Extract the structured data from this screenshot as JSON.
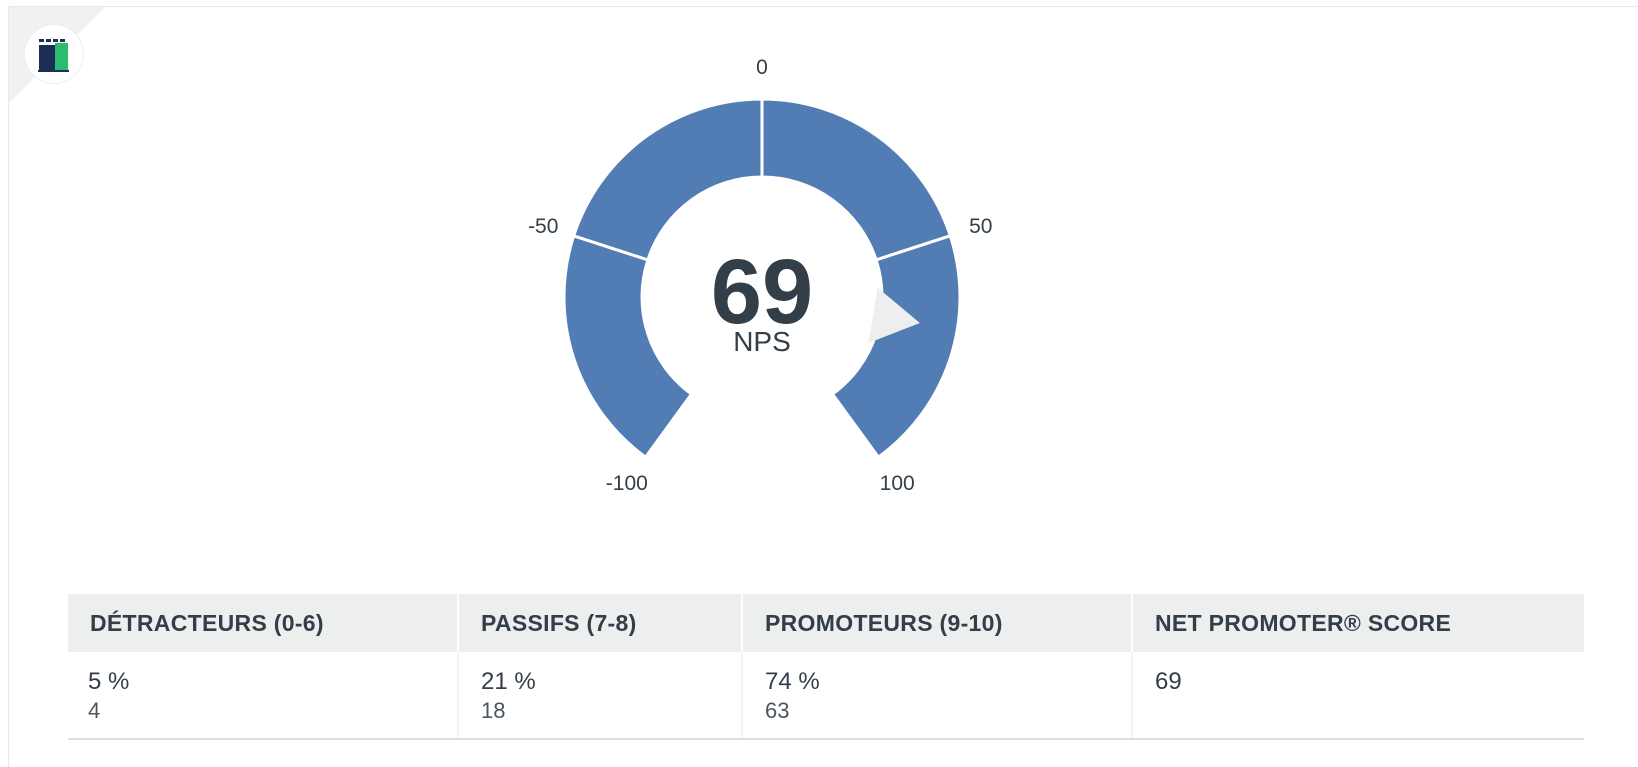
{
  "chart_data": {
    "type": "gauge",
    "metric_label": "NPS",
    "value": 69,
    "range": [
      -100,
      100
    ],
    "tick_labels": [
      "-100",
      "-50",
      "0",
      "50",
      "100"
    ],
    "tick_values": [
      -100,
      -50,
      0,
      50,
      100
    ],
    "segment_color": "#517cb4",
    "pointer_color": "#eeeeee",
    "table": {
      "columns": [
        "DÉTRACTEURS (0-6)",
        "PASSIFS (7-8)",
        "PROMOTEURS (9-10)",
        "NET PROMOTER® SCORE"
      ],
      "rows": [
        {
          "percent": "5 %",
          "count": "4"
        },
        {
          "percent": "21 %",
          "count": "18"
        },
        {
          "percent": "74 %",
          "count": "63"
        },
        {
          "percent": "69",
          "count": ""
        }
      ]
    }
  },
  "logo": {
    "icon": "app-logo-icon"
  }
}
